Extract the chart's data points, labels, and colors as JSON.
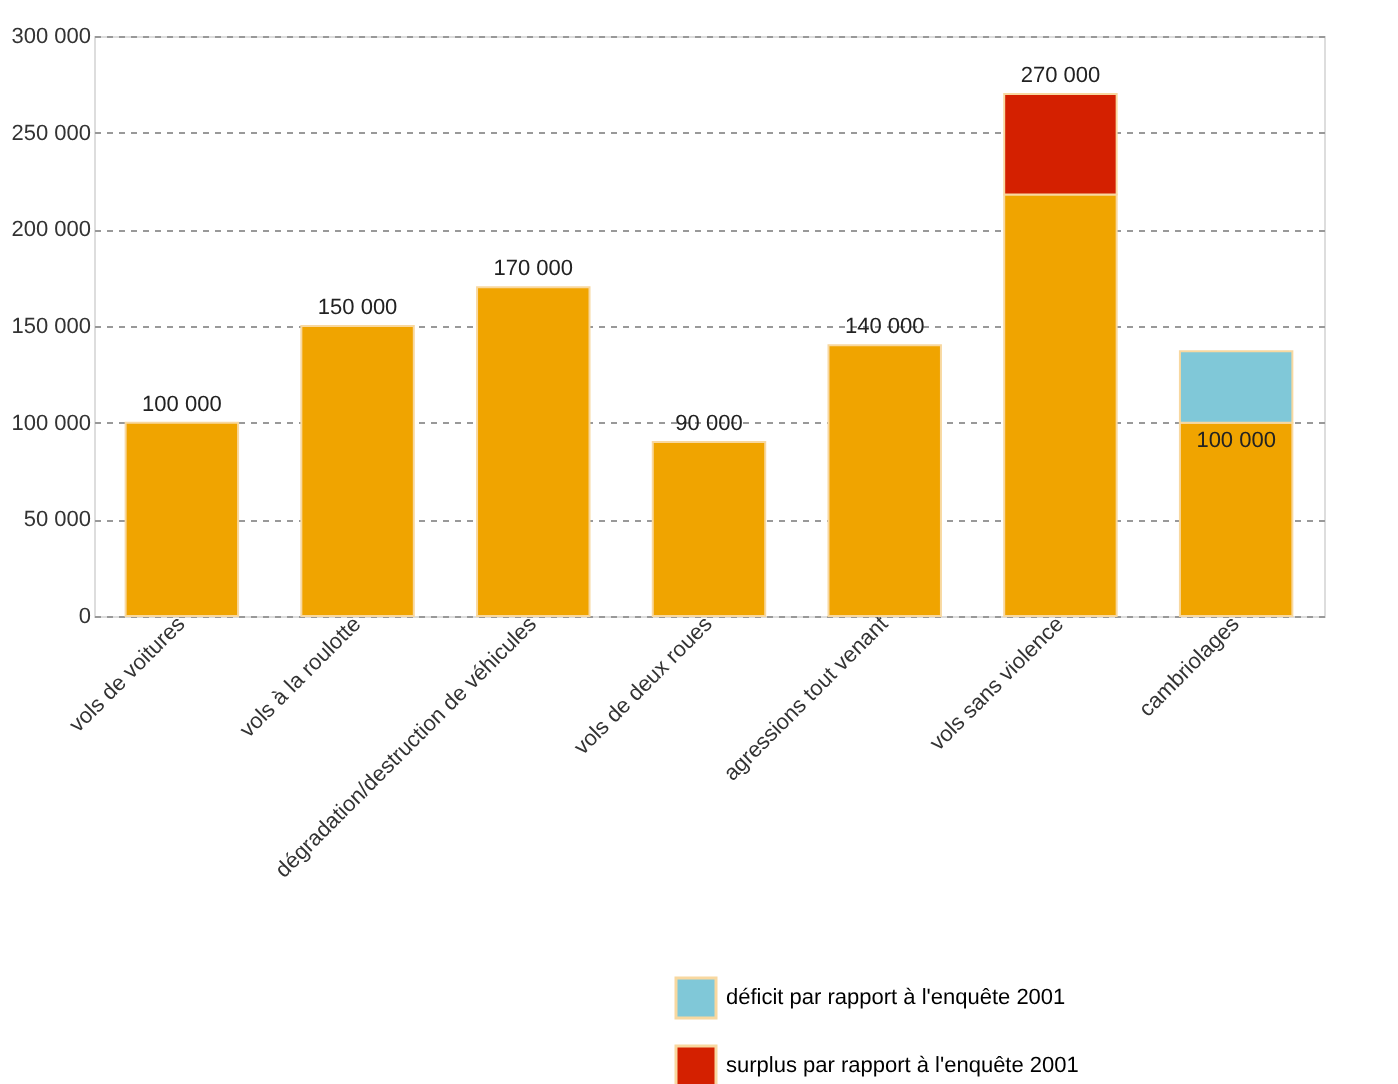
{
  "chart_data": {
    "type": "bar",
    "stacked": true,
    "categories": [
      "vols de voitures",
      "vols à la roulotte",
      "dégradation/destruction de véhicules",
      "vols de deux roues",
      "agressions tout venant",
      "vols sans violence",
      "cambriolages"
    ],
    "series": [
      {
        "color": "#f0a400",
        "values": [
          100000,
          150000,
          170000,
          90000,
          140000,
          218000,
          100000
        ],
        "value_labels": [
          null,
          null,
          null,
          null,
          null,
          null,
          "100 000"
        ]
      },
      {
        "name": "déficit par rapport à l'enquête 2001",
        "color": "#80c8d8",
        "values": [
          null,
          null,
          null,
          null,
          null,
          null,
          37000
        ]
      },
      {
        "name": "surplus par rapport à l'enquête 2001",
        "color": "#d42000",
        "values": [
          null,
          null,
          null,
          null,
          null,
          52000,
          null
        ]
      }
    ],
    "totals": [
      "100 000",
      "150 000",
      "170 000",
      "90 000",
      "140 000",
      "270 000",
      null
    ],
    "ylim": [
      0,
      300000
    ],
    "yticks": [
      {
        "value": 0,
        "label": "0"
      },
      {
        "value": 50000,
        "label": "50 000"
      },
      {
        "value": 100000,
        "label": "100 000"
      },
      {
        "value": 150000,
        "label": "150 000"
      },
      {
        "value": 200000,
        "label": "200 000"
      },
      {
        "value": 250000,
        "label": "250 000"
      },
      {
        "value": 300000,
        "label": "300 000"
      }
    ],
    "grid": "y",
    "legend": "bottom right"
  }
}
